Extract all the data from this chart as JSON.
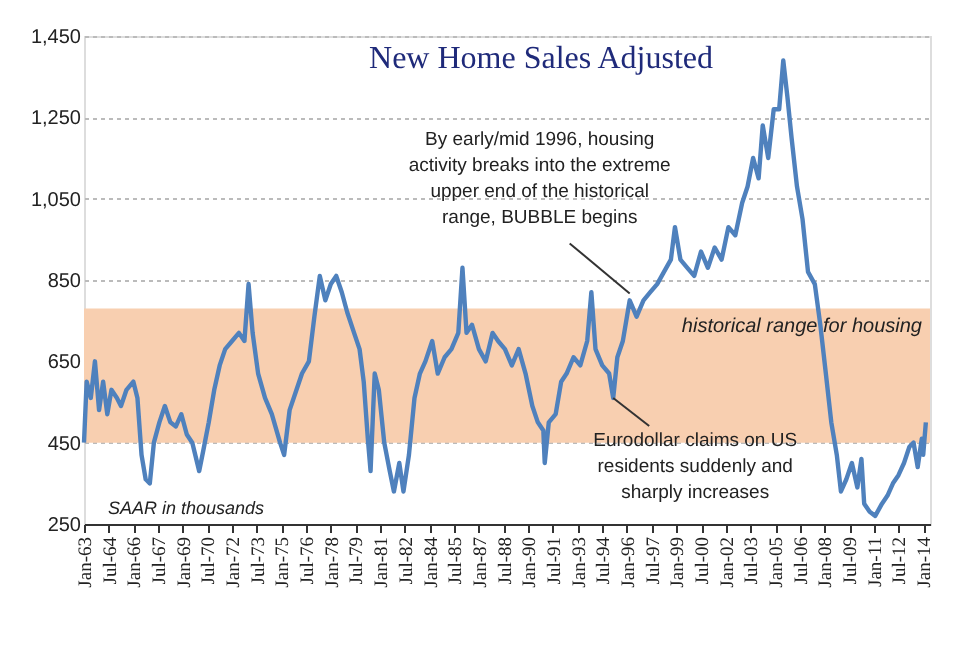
{
  "chart_data": {
    "type": "line",
    "title": "New Home Sales Adjusted",
    "x": [
      "1963-01",
      "1963-03",
      "1963-06",
      "1963-09",
      "1963-12",
      "1964-03",
      "1964-06",
      "1964-09",
      "1965-01",
      "1965-04",
      "1965-08",
      "1966-01",
      "1966-04",
      "1966-07",
      "1966-10",
      "1967-01",
      "1967-04",
      "1967-08",
      "1967-12",
      "1968-04",
      "1968-08",
      "1968-12",
      "1969-04",
      "1969-08",
      "1970-01",
      "1970-04",
      "1970-08",
      "1970-12",
      "1971-04",
      "1971-08",
      "1972-01",
      "1972-06",
      "1972-10",
      "1973-01",
      "1973-04",
      "1973-08",
      "1974-01",
      "1974-06",
      "1974-12",
      "1975-03",
      "1975-07",
      "1975-12",
      "1976-04",
      "1976-09",
      "1977-01",
      "1977-05",
      "1977-09",
      "1978-01",
      "1978-05",
      "1978-09",
      "1979-01",
      "1979-06",
      "1979-10",
      "1980-01",
      "1980-04",
      "1980-06",
      "1980-09",
      "1980-12",
      "1981-04",
      "1981-08",
      "1981-11",
      "1982-03",
      "1982-06",
      "1982-10",
      "1983-02",
      "1983-06",
      "1983-10",
      "1984-03",
      "1984-07",
      "1984-12",
      "1985-05",
      "1985-10",
      "1986-01",
      "1986-04",
      "1986-08",
      "1987-01",
      "1987-06",
      "1987-11",
      "1988-03",
      "1988-08",
      "1989-01",
      "1989-06",
      "1989-11",
      "1990-04",
      "1990-08",
      "1990-12",
      "1991-01",
      "1991-04",
      "1991-09",
      "1992-01",
      "1992-05",
      "1992-10",
      "1993-03",
      "1993-08",
      "1993-11",
      "1994-02",
      "1994-07",
      "1994-12",
      "1995-03",
      "1995-06",
      "1995-10",
      "1996-03",
      "1996-08",
      "1997-01",
      "1997-06",
      "1997-11",
      "1998-04",
      "1998-09",
      "1998-12",
      "1999-04",
      "1999-09",
      "2000-02",
      "2000-07",
      "2000-12",
      "2001-05",
      "2001-10",
      "2002-03",
      "2002-08",
      "2003-01",
      "2003-05",
      "2003-09",
      "2004-01",
      "2004-04",
      "2004-08",
      "2004-12",
      "2005-04",
      "2005-07",
      "2005-10",
      "2006-01",
      "2006-05",
      "2006-09",
      "2007-01",
      "2007-06",
      "2007-10",
      "2008-02",
      "2008-06",
      "2008-10",
      "2009-01",
      "2009-05",
      "2009-09",
      "2010-01",
      "2010-04",
      "2010-06",
      "2010-10",
      "2011-02",
      "2011-07",
      "2011-11",
      "2012-03",
      "2012-07",
      "2012-11",
      "2013-03",
      "2013-06",
      "2013-09",
      "2013-12",
      "2014-01",
      "2014-03"
    ],
    "series": [
      {
        "color": "#4f81bd",
        "values": [
          450,
          600,
          560,
          650,
          530,
          600,
          520,
          580,
          560,
          540,
          580,
          600,
          560,
          420,
          360,
          350,
          450,
          500,
          540,
          500,
          490,
          520,
          470,
          450,
          380,
          430,
          500,
          580,
          640,
          680,
          700,
          720,
          700,
          840,
          720,
          620,
          560,
          520,
          450,
          420,
          530,
          580,
          620,
          650,
          760,
          860,
          800,
          840,
          860,
          820,
          770,
          720,
          680,
          600,
          460,
          380,
          620,
          580,
          450,
          380,
          330,
          400,
          330,
          420,
          560,
          620,
          650,
          700,
          620,
          660,
          680,
          720,
          880,
          720,
          740,
          680,
          650,
          720,
          700,
          680,
          640,
          680,
          620,
          540,
          500,
          480,
          400,
          500,
          520,
          600,
          620,
          660,
          640,
          700,
          820,
          680,
          640,
          620,
          560,
          660,
          700,
          800,
          760,
          800,
          820,
          840,
          870,
          900,
          980,
          900,
          880,
          860,
          920,
          880,
          930,
          900,
          980,
          960,
          1040,
          1080,
          1150,
          1100,
          1230,
          1150,
          1270,
          1270,
          1390,
          1300,
          1200,
          1080,
          1000,
          870,
          840,
          740,
          620,
          500,
          420,
          330,
          360,
          400,
          340,
          410,
          300,
          280,
          270,
          300,
          320,
          350,
          370,
          400,
          440,
          450,
          390,
          460,
          420,
          500
        ]
      }
    ],
    "xlim": [
      "1963-01",
      "2014-06"
    ],
    "xticks": [
      {
        "value": "1963-01",
        "label": "Jan-63"
      },
      {
        "value": "1964-07",
        "label": "Jul-64"
      },
      {
        "value": "1966-01",
        "label": "Jan-66"
      },
      {
        "value": "1967-07",
        "label": "Jul-67"
      },
      {
        "value": "1969-01",
        "label": "Jan-69"
      },
      {
        "value": "1970-07",
        "label": "Jul-70"
      },
      {
        "value": "1972-01",
        "label": "Jan-72"
      },
      {
        "value": "1973-07",
        "label": "Jul-73"
      },
      {
        "value": "1975-01",
        "label": "Jan-75"
      },
      {
        "value": "1976-07",
        "label": "Jul-76"
      },
      {
        "value": "1978-01",
        "label": "Jan-78"
      },
      {
        "value": "1979-07",
        "label": "Jul-79"
      },
      {
        "value": "1981-01",
        "label": "Jan-81"
      },
      {
        "value": "1982-07",
        "label": "Jul-82"
      },
      {
        "value": "1984-01",
        "label": "Jan-84"
      },
      {
        "value": "1985-07",
        "label": "Jul-85"
      },
      {
        "value": "1987-01",
        "label": "Jan-87"
      },
      {
        "value": "1988-07",
        "label": "Jul-88"
      },
      {
        "value": "1990-01",
        "label": "Jan-90"
      },
      {
        "value": "1991-07",
        "label": "Jul-91"
      },
      {
        "value": "1993-01",
        "label": "Jan-93"
      },
      {
        "value": "1994-07",
        "label": "Jul-94"
      },
      {
        "value": "1996-01",
        "label": "Jan-96"
      },
      {
        "value": "1997-07",
        "label": "Jul-97"
      },
      {
        "value": "1999-01",
        "label": "Jan-99"
      },
      {
        "value": "2000-07",
        "label": "Jul-00"
      },
      {
        "value": "2002-01",
        "label": "Jan-02"
      },
      {
        "value": "2003-07",
        "label": "Jul-03"
      },
      {
        "value": "2005-01",
        "label": "Jan-05"
      },
      {
        "value": "2006-07",
        "label": "Jul-06"
      },
      {
        "value": "2008-01",
        "label": "Jan-08"
      },
      {
        "value": "2009-07",
        "label": "Jul-09"
      },
      {
        "value": "2011-01",
        "label": "Jan-11"
      },
      {
        "value": "2012-07",
        "label": "Jul-12"
      },
      {
        "value": "2014-01",
        "label": "Jan-14"
      }
    ],
    "ylim": [
      250,
      1450
    ],
    "yticks": [
      250,
      450,
      650,
      {
        "value": 850,
        "label": "850"
      },
      {
        "value": 1050,
        "label": "1,050"
      },
      {
        "value": 1250,
        "label": "1,250"
      },
      {
        "value": 1450,
        "label": "1,450"
      }
    ],
    "grid": "y",
    "bands": [
      {
        "axis": "y",
        "from": 450,
        "to": 780,
        "label": "historical range for housing",
        "color": "#f8cfb0"
      }
    ],
    "annotations": [
      {
        "text": "By early/mid 1996, housing activity breaks into the extreme upper end of the historical range, BUBBLE  begins",
        "x": "1996-03",
        "y": 817
      },
      {
        "text": "Eurodollar claims on US residents suddenly and sharply increases",
        "x": "1995-03",
        "y": 560
      },
      "SAAR in thousands"
    ]
  }
}
